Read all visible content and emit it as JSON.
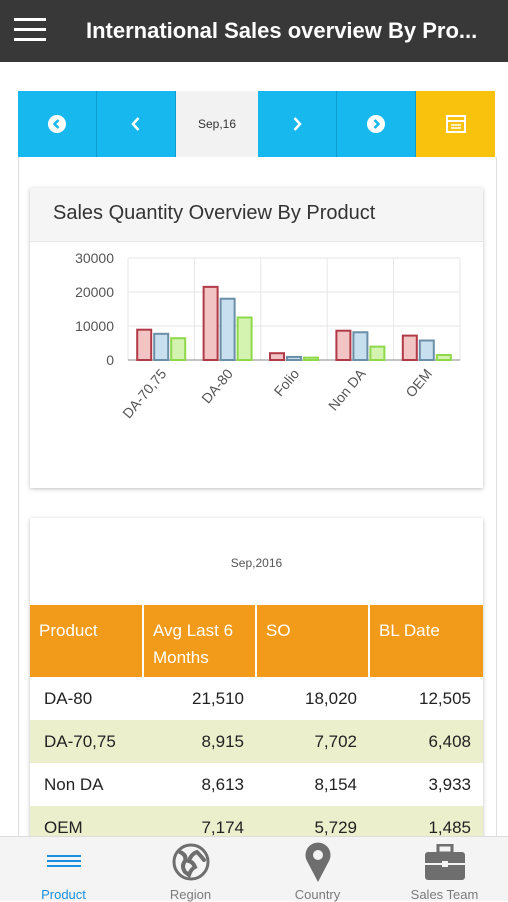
{
  "header": {
    "title": "International Sales overview By Pro..."
  },
  "nav": {
    "date": "Sep,16",
    "colors": {
      "blue": "#16b8ee",
      "yellow": "#f9c20d"
    }
  },
  "chart_card": {
    "title": "Sales Quantity Overview By Product"
  },
  "chart_data": {
    "type": "bar",
    "categories": [
      "DA-70,75",
      "DA-80",
      "Folio",
      "Non DA",
      "OEM"
    ],
    "series": [
      {
        "values": [
          8915,
          21510,
          2000,
          8613,
          7174
        ],
        "color": "#f2c4c4",
        "stroke": "#b03a48"
      },
      {
        "values": [
          7702,
          18020,
          900,
          8154,
          5729
        ],
        "color": "#c8dff0",
        "stroke": "#6a8fa6"
      },
      {
        "values": [
          6408,
          12505,
          700,
          3933,
          1485
        ],
        "color": "#d4f2b0",
        "stroke": "#8fd84a"
      }
    ],
    "yticks": [
      "30000",
      "20000",
      "10000",
      "0"
    ],
    "ylim": [
      0,
      30000
    ]
  },
  "table_card": {
    "period": "Sep,2016",
    "columns": [
      "Product",
      "Avg Last 6 Months",
      "SO",
      "BL Date"
    ],
    "rows": [
      [
        "DA-80",
        "21,510",
        "18,020",
        "12,505"
      ],
      [
        "DA-70,75",
        "8,915",
        "7,702",
        "6,408"
      ],
      [
        "Non DA",
        "8,613",
        "8,154",
        "3,933"
      ],
      [
        "OEM",
        "7,174",
        "5,729",
        "1,485"
      ]
    ]
  },
  "bottom_nav": [
    {
      "label": "Product",
      "icon": "list-icon",
      "active": true
    },
    {
      "label": "Region",
      "icon": "globe-icon",
      "active": false
    },
    {
      "label": "Country",
      "icon": "location-pin-icon",
      "active": false
    },
    {
      "label": "Sales Team",
      "icon": "briefcase-icon",
      "active": false
    }
  ]
}
